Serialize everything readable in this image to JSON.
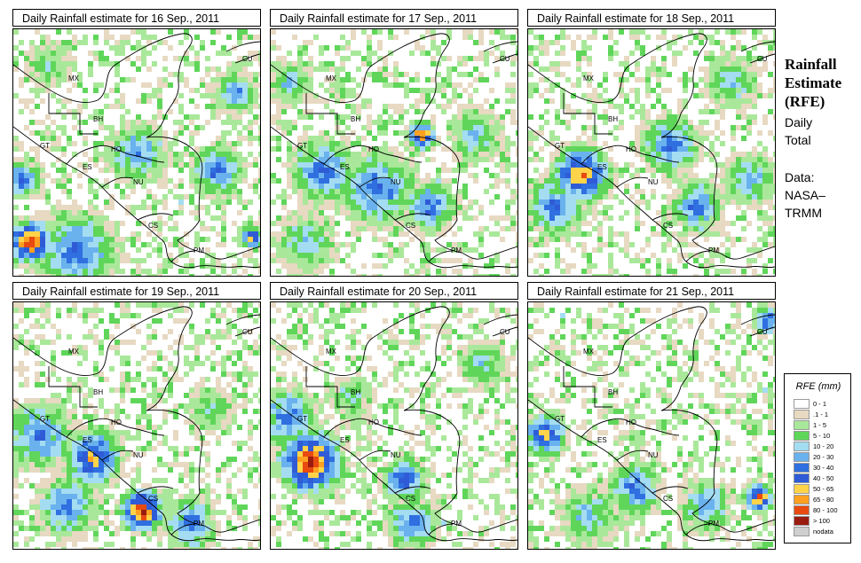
{
  "panels": [
    {
      "title": "Daily Rainfall estimate for  16 Sep., 2011",
      "seed": 16
    },
    {
      "title": "Daily Rainfall estimate for  17 Sep., 2011",
      "seed": 17
    },
    {
      "title": "Daily Rainfall estimate for  18 Sep., 2011",
      "seed": 18
    },
    {
      "title": "Daily Rainfall estimate for  19 Sep., 2011",
      "seed": 19
    },
    {
      "title": "Daily Rainfall estimate for  20 Sep., 2011",
      "seed": 20
    },
    {
      "title": "Daily Rainfall estimate for  21 Sep., 2011",
      "seed": 21
    }
  ],
  "country_labels": [
    "MX",
    "BH",
    "GT",
    "HO",
    "ES",
    "NU",
    "CS",
    "PM",
    "CU"
  ],
  "side": {
    "title_line1": "Rainfall",
    "title_line2": "Estimate",
    "title_line3": "(RFE)",
    "daily": "Daily",
    "total": "Total",
    "data": "Data:",
    "nasa": "NASA–",
    "trmm": "TRMM"
  },
  "legend": {
    "title": "RFE (mm)",
    "items": [
      {
        "label": "0 - 1",
        "color": "#ffffff"
      },
      {
        "label": ".1 - 1",
        "color": "#e7d9c2"
      },
      {
        "label": "1 - 5",
        "color": "#a9e89a"
      },
      {
        "label": "5 - 10",
        "color": "#5fd65a"
      },
      {
        "label": "10 - 20",
        "color": "#a4dcf2"
      },
      {
        "label": "20 - 30",
        "color": "#6ab2ee"
      },
      {
        "label": "30 - 40",
        "color": "#2f6fe0"
      },
      {
        "label": "40 - 50",
        "color": "#2f5cd6"
      },
      {
        "label": "50 - 65",
        "color": "#ffd34a"
      },
      {
        "label": "65 - 80",
        "color": "#ffa020"
      },
      {
        "label": "80 - 100",
        "color": "#e84a10"
      },
      {
        "label": "> 100",
        "color": "#9a1c10"
      },
      {
        "label": "nodata",
        "color": "#cfcfcf"
      }
    ]
  }
}
